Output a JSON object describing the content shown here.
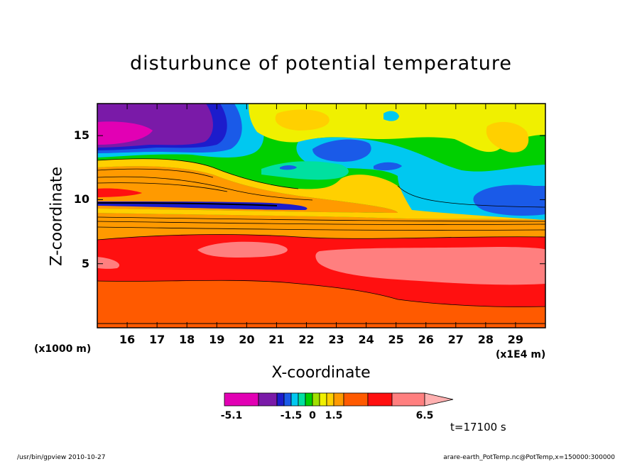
{
  "chart_data": {
    "type": "heatmap",
    "title": "disturbunce of potential temperature",
    "xlabel": "X-coordinate",
    "ylabel": "Z-coordinate",
    "x_unit": "(x1E4 m)",
    "y_unit": "(x1000 m)",
    "xlim": [
      15.0,
      30.0
    ],
    "ylim": [
      0.0,
      17.5
    ],
    "x_ticks": [
      "16",
      "17",
      "18",
      "19",
      "20",
      "21",
      "22",
      "23",
      "24",
      "25",
      "26",
      "27",
      "28",
      "29"
    ],
    "y_ticks": [
      "5",
      "10",
      "15"
    ],
    "colorbar": {
      "tick_labels": [
        "-5.1",
        "-1.5",
        "0",
        "1.5",
        "6.5"
      ],
      "levels": [
        -5.1,
        -3.9,
        -3.0,
        -2.1,
        -1.5,
        -1.0,
        -0.5,
        0.0,
        0.5,
        1.0,
        1.5,
        2.5,
        3.5,
        5.0,
        6.5
      ],
      "colors": [
        "#e200b4",
        "#7a1aa8",
        "#1c1ccc",
        "#1a5ae8",
        "#00c8f0",
        "#00e0a0",
        "#00d000",
        "#a0e000",
        "#f0f000",
        "#ffd000",
        "#ff9a00",
        "#ff5a00",
        "#ff1010",
        "#ff7f7f"
      ],
      "extend": "max"
    },
    "layers": [
      {
        "z_range": [
          0.0,
          0.3
        ],
        "value_band": "1.5 to 2.5",
        "color": "#ff5a00"
      },
      {
        "z_range": [
          0.3,
          3.5
        ],
        "value_band": "2.5 to 3.5",
        "color": "#ff5a00"
      },
      {
        "z_range": [
          3.5,
          8.5
        ],
        "value_band": "3.5 to 5.0",
        "color": "#ff1010"
      },
      {
        "z_range": [
          4.5,
          6.5
        ],
        "x_range": [
          22.5,
          30.0
        ],
        "value_band": "5.0 to 6.5",
        "color": "#ff7f7f"
      },
      {
        "z_range": [
          8.5,
          10.0
        ],
        "value_band": "1.5 to 2.5",
        "color": "#ff9a00"
      },
      {
        "z_range": [
          10.0,
          13.0
        ],
        "value_band": "0.5 to 1.5",
        "color": "#ffd000"
      },
      {
        "z_range": [
          13.0,
          17.5
        ],
        "value_band": "-1.0 to 0.5",
        "color": "#00d000"
      },
      {
        "z_range": [
          15.0,
          17.0
        ],
        "x_range": [
          15.0,
          18.5
        ],
        "value_band": "-5.1 to -3.9",
        "color": "#e200b4"
      },
      {
        "z_range": [
          10.5,
          12.0
        ],
        "x_range": [
          27.5,
          30.0
        ],
        "value_band": "-2.1 to -1.5",
        "color": "#1a5ae8"
      }
    ]
  },
  "footer": {
    "left": "/usr/bin/gpview   2010-10-27",
    "right": "arare-earth_PotTemp.nc@PotTemp,x=150000:300000"
  },
  "time_label": "t=17100 s"
}
